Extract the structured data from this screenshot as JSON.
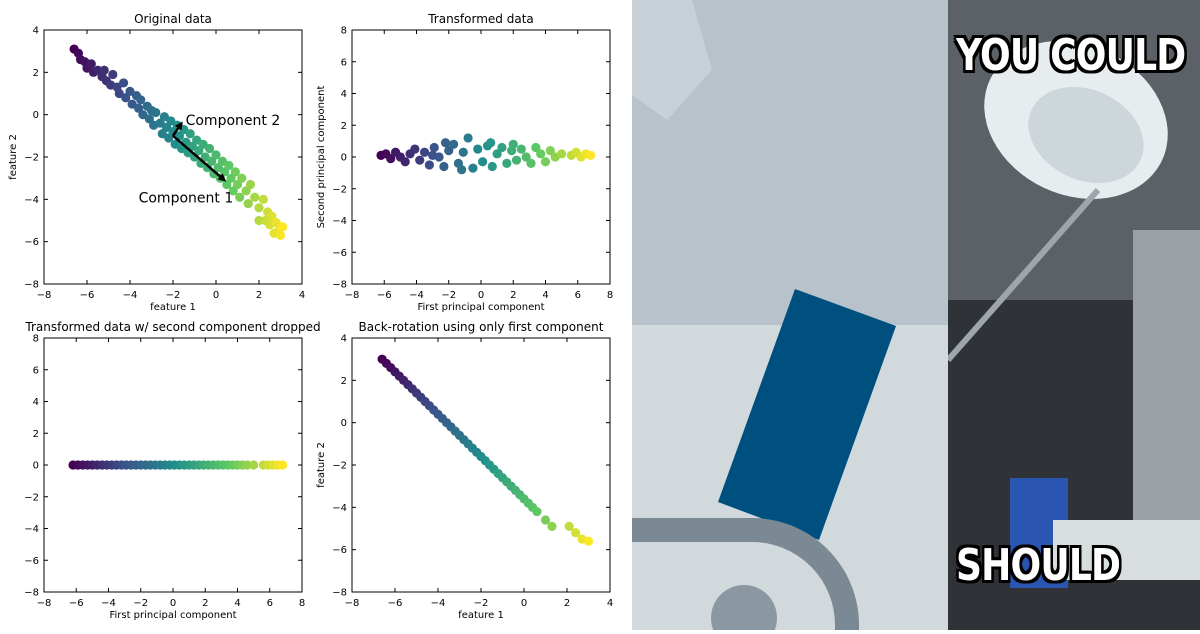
{
  "chart_data": [
    {
      "type": "scatter",
      "title": "Original data",
      "xlabel": "feature 1",
      "ylabel": "feature 2",
      "xlim": [
        -8,
        4
      ],
      "ylim": [
        -8,
        4
      ],
      "xticks": [
        -8,
        -6,
        -4,
        -2,
        0,
        2,
        4
      ],
      "yticks": [
        -8,
        -6,
        -4,
        -2,
        0,
        2,
        4
      ],
      "colormap": "viridis",
      "points": [
        [
          -6.6,
          3.1
        ],
        [
          -6.4,
          2.9
        ],
        [
          -6.3,
          2.6
        ],
        [
          -6.1,
          2.5
        ],
        [
          -6.0,
          2.2
        ],
        [
          -5.8,
          2.4
        ],
        [
          -5.7,
          2.0
        ],
        [
          -5.5,
          2.1
        ],
        [
          -5.3,
          1.8
        ],
        [
          -5.1,
          1.6
        ],
        [
          -5.2,
          2.1
        ],
        [
          -4.9,
          1.4
        ],
        [
          -4.8,
          1.9
        ],
        [
          -4.6,
          1.3
        ],
        [
          -4.5,
          1.0
        ],
        [
          -4.3,
          1.5
        ],
        [
          -4.2,
          0.8
        ],
        [
          -4.0,
          1.1
        ],
        [
          -3.9,
          0.5
        ],
        [
          -3.7,
          0.9
        ],
        [
          -3.6,
          0.3
        ],
        [
          -3.5,
          0.7
        ],
        [
          -3.4,
          0.0
        ],
        [
          -3.2,
          0.4
        ],
        [
          -3.1,
          -0.2
        ],
        [
          -3.0,
          0.2
        ],
        [
          -2.9,
          -0.5
        ],
        [
          -2.8,
          0.1
        ],
        [
          -2.6,
          -0.4
        ],
        [
          -2.5,
          -0.9
        ],
        [
          -2.4,
          -0.1
        ],
        [
          -2.3,
          -0.6
        ],
        [
          -2.2,
          -1.1
        ],
        [
          -2.1,
          -0.3
        ],
        [
          -2.0,
          -0.8
        ],
        [
          -1.9,
          -1.4
        ],
        [
          -1.8,
          -0.5
        ],
        [
          -1.7,
          -1.0
        ],
        [
          -1.6,
          -1.6
        ],
        [
          -1.5,
          -0.7
        ],
        [
          -1.4,
          -1.3
        ],
        [
          -1.3,
          -1.8
        ],
        [
          -1.2,
          -0.9
        ],
        [
          -1.1,
          -1.5
        ],
        [
          -1.0,
          -2.0
        ],
        [
          -0.9,
          -1.2
        ],
        [
          -0.8,
          -1.7
        ],
        [
          -0.7,
          -2.3
        ],
        [
          -0.6,
          -1.4
        ],
        [
          -0.5,
          -2.0
        ],
        [
          -0.4,
          -2.5
        ],
        [
          -0.3,
          -1.6
        ],
        [
          -0.2,
          -2.2
        ],
        [
          -0.1,
          -2.8
        ],
        [
          0.0,
          -1.9
        ],
        [
          0.1,
          -2.5
        ],
        [
          0.2,
          -3.0
        ],
        [
          0.3,
          -2.2
        ],
        [
          0.4,
          -2.7
        ],
        [
          0.5,
          -3.3
        ],
        [
          0.6,
          -2.4
        ],
        [
          0.7,
          -3.0
        ],
        [
          0.8,
          -3.6
        ],
        [
          0.9,
          -2.7
        ],
        [
          1.0,
          -3.3
        ],
        [
          1.1,
          -3.9
        ],
        [
          1.2,
          -3.0
        ],
        [
          1.4,
          -3.6
        ],
        [
          1.5,
          -4.2
        ],
        [
          1.6,
          -3.3
        ],
        [
          1.8,
          -3.9
        ],
        [
          2.0,
          -4.4
        ],
        [
          2.2,
          -4.0
        ],
        [
          2.4,
          -4.6
        ],
        [
          2.0,
          -5.0
        ],
        [
          2.3,
          -5.0
        ],
        [
          2.6,
          -4.8
        ],
        [
          2.5,
          -5.2
        ],
        [
          2.8,
          -5.1
        ],
        [
          2.9,
          -5.5
        ],
        [
          3.1,
          -5.3
        ],
        [
          2.7,
          -5.6
        ],
        [
          3.0,
          -5.7
        ]
      ],
      "vectors": [
        {
          "from": [
            -2.0,
            -1.0
          ],
          "to": [
            -1.6,
            -0.4
          ],
          "label": "Component 2"
        },
        {
          "from": [
            -2.0,
            -1.0
          ],
          "to": [
            0.4,
            -3.1
          ],
          "label": "Component 1"
        }
      ]
    },
    {
      "type": "scatter",
      "title": "Transformed data",
      "xlabel": "First principal component",
      "ylabel": "Second principal component",
      "xlim": [
        -8,
        8
      ],
      "ylim": [
        -8,
        8
      ],
      "xticks": [
        -8,
        -6,
        -4,
        -2,
        0,
        2,
        4,
        6,
        8
      ],
      "yticks": [
        -8,
        -6,
        -4,
        -2,
        0,
        2,
        4,
        6,
        8
      ],
      "colormap": "viridis",
      "points": [
        [
          -6.2,
          0.1
        ],
        [
          -5.9,
          0.2
        ],
        [
          -5.6,
          -0.1
        ],
        [
          -5.3,
          0.3
        ],
        [
          -5.0,
          0.0
        ],
        [
          -4.7,
          -0.3
        ],
        [
          -4.4,
          0.2
        ],
        [
          -4.1,
          0.5
        ],
        [
          -3.8,
          -0.2
        ],
        [
          -3.5,
          0.3
        ],
        [
          -3.2,
          -0.5
        ],
        [
          -2.9,
          0.6
        ],
        [
          -2.6,
          0.0
        ],
        [
          -2.3,
          -0.6
        ],
        [
          -2.0,
          0.4
        ],
        [
          -1.7,
          0.8
        ],
        [
          -1.4,
          -0.4
        ],
        [
          -1.1,
          0.3
        ],
        [
          -0.8,
          1.2
        ],
        [
          -0.5,
          -0.7
        ],
        [
          -0.2,
          0.5
        ],
        [
          0.1,
          -0.3
        ],
        [
          0.4,
          0.7
        ],
        [
          0.7,
          -0.6
        ],
        [
          1.0,
          0.2
        ],
        [
          1.3,
          0.6
        ],
        [
          1.6,
          -0.4
        ],
        [
          1.9,
          0.4
        ],
        [
          2.2,
          -0.2
        ],
        [
          2.5,
          0.5
        ],
        [
          2.8,
          0.0
        ],
        [
          3.1,
          -0.4
        ],
        [
          3.4,
          0.6
        ],
        [
          3.7,
          0.2
        ],
        [
          4.0,
          -0.3
        ],
        [
          4.3,
          0.4
        ],
        [
          4.6,
          0.0
        ],
        [
          5.0,
          0.2
        ],
        [
          5.6,
          0.1
        ],
        [
          5.9,
          0.3
        ],
        [
          6.2,
          0.0
        ],
        [
          6.5,
          0.2
        ],
        [
          6.8,
          0.1
        ],
        [
          -3.0,
          0.1
        ],
        [
          -1.2,
          -0.8
        ],
        [
          0.6,
          0.9
        ],
        [
          2.0,
          0.8
        ],
        [
          -2.2,
          0.9
        ]
      ]
    },
    {
      "type": "scatter",
      "title": "Transformed data w/ second component dropped",
      "xlabel": "First principal component",
      "ylabel": "",
      "xlim": [
        -8,
        8
      ],
      "ylim": [
        -8,
        8
      ],
      "xticks": [
        -8,
        -6,
        -4,
        -2,
        0,
        2,
        4,
        6,
        8
      ],
      "yticks": [
        -8,
        -6,
        -4,
        -2,
        0,
        2,
        4,
        6,
        8
      ],
      "colormap": "viridis",
      "points": [
        [
          -6.2,
          0
        ],
        [
          -5.9,
          0
        ],
        [
          -5.6,
          0
        ],
        [
          -5.3,
          0
        ],
        [
          -5.0,
          0
        ],
        [
          -4.7,
          0
        ],
        [
          -4.4,
          0
        ],
        [
          -4.1,
          0
        ],
        [
          -3.8,
          0
        ],
        [
          -3.5,
          0
        ],
        [
          -3.2,
          0
        ],
        [
          -2.9,
          0
        ],
        [
          -2.6,
          0
        ],
        [
          -2.3,
          0
        ],
        [
          -2.0,
          0
        ],
        [
          -1.7,
          0
        ],
        [
          -1.4,
          0
        ],
        [
          -1.1,
          0
        ],
        [
          -0.8,
          0
        ],
        [
          -0.5,
          0
        ],
        [
          -0.2,
          0
        ],
        [
          0.1,
          0
        ],
        [
          0.4,
          0
        ],
        [
          0.7,
          0
        ],
        [
          1.0,
          0
        ],
        [
          1.3,
          0
        ],
        [
          1.6,
          0
        ],
        [
          1.9,
          0
        ],
        [
          2.2,
          0
        ],
        [
          2.5,
          0
        ],
        [
          2.8,
          0
        ],
        [
          3.1,
          0
        ],
        [
          3.4,
          0
        ],
        [
          3.7,
          0
        ],
        [
          4.0,
          0
        ],
        [
          4.3,
          0
        ],
        [
          4.6,
          0
        ],
        [
          5.0,
          0
        ],
        [
          5.6,
          0
        ],
        [
          5.9,
          0
        ],
        [
          6.2,
          0
        ],
        [
          6.5,
          0
        ],
        [
          6.8,
          0
        ]
      ]
    },
    {
      "type": "scatter",
      "title": "Back-rotation using only first component",
      "xlabel": "feature 1",
      "ylabel": "feature 2",
      "xlim": [
        -8,
        4
      ],
      "ylim": [
        -8,
        4
      ],
      "xticks": [
        -8,
        -6,
        -4,
        -2,
        0,
        2,
        4
      ],
      "yticks": [
        -8,
        -6,
        -4,
        -2,
        0,
        2,
        4
      ],
      "colormap": "viridis",
      "points": [
        [
          -6.6,
          3.0
        ],
        [
          -6.4,
          2.8
        ],
        [
          -6.2,
          2.6
        ],
        [
          -6.0,
          2.4
        ],
        [
          -5.8,
          2.2
        ],
        [
          -5.6,
          2.0
        ],
        [
          -5.4,
          1.8
        ],
        [
          -5.2,
          1.6
        ],
        [
          -5.0,
          1.4
        ],
        [
          -4.8,
          1.2
        ],
        [
          -4.6,
          1.0
        ],
        [
          -4.4,
          0.8
        ],
        [
          -4.2,
          0.6
        ],
        [
          -4.0,
          0.4
        ],
        [
          -3.8,
          0.2
        ],
        [
          -3.6,
          0.0
        ],
        [
          -3.4,
          -0.2
        ],
        [
          -3.2,
          -0.4
        ],
        [
          -3.0,
          -0.6
        ],
        [
          -2.8,
          -0.8
        ],
        [
          -2.6,
          -1.0
        ],
        [
          -2.4,
          -1.2
        ],
        [
          -2.2,
          -1.4
        ],
        [
          -2.0,
          -1.6
        ],
        [
          -1.8,
          -1.8
        ],
        [
          -1.6,
          -2.0
        ],
        [
          -1.4,
          -2.2
        ],
        [
          -1.2,
          -2.4
        ],
        [
          -1.0,
          -2.6
        ],
        [
          -0.8,
          -2.8
        ],
        [
          -0.6,
          -3.0
        ],
        [
          -0.4,
          -3.2
        ],
        [
          -0.2,
          -3.4
        ],
        [
          0.0,
          -3.6
        ],
        [
          0.2,
          -3.8
        ],
        [
          0.4,
          -4.0
        ],
        [
          0.6,
          -4.2
        ],
        [
          1.0,
          -4.6
        ],
        [
          1.3,
          -4.9
        ],
        [
          2.1,
          -4.9
        ],
        [
          2.4,
          -5.2
        ],
        [
          2.7,
          -5.5
        ],
        [
          3.0,
          -5.6
        ]
      ]
    }
  ],
  "meme": {
    "top_text": "YOU COULD",
    "bottom_text": "SHOULD"
  },
  "colors": {
    "arrow": "#000000",
    "middle_bg_top": "#b8c2ca",
    "middle_bg_bottom": "#d2d9dd",
    "middle_shape": "#c7d0d6",
    "middle_rect": "#00507f",
    "middle_track": "#7a8993",
    "middle_dot": "#8b98a1"
  }
}
